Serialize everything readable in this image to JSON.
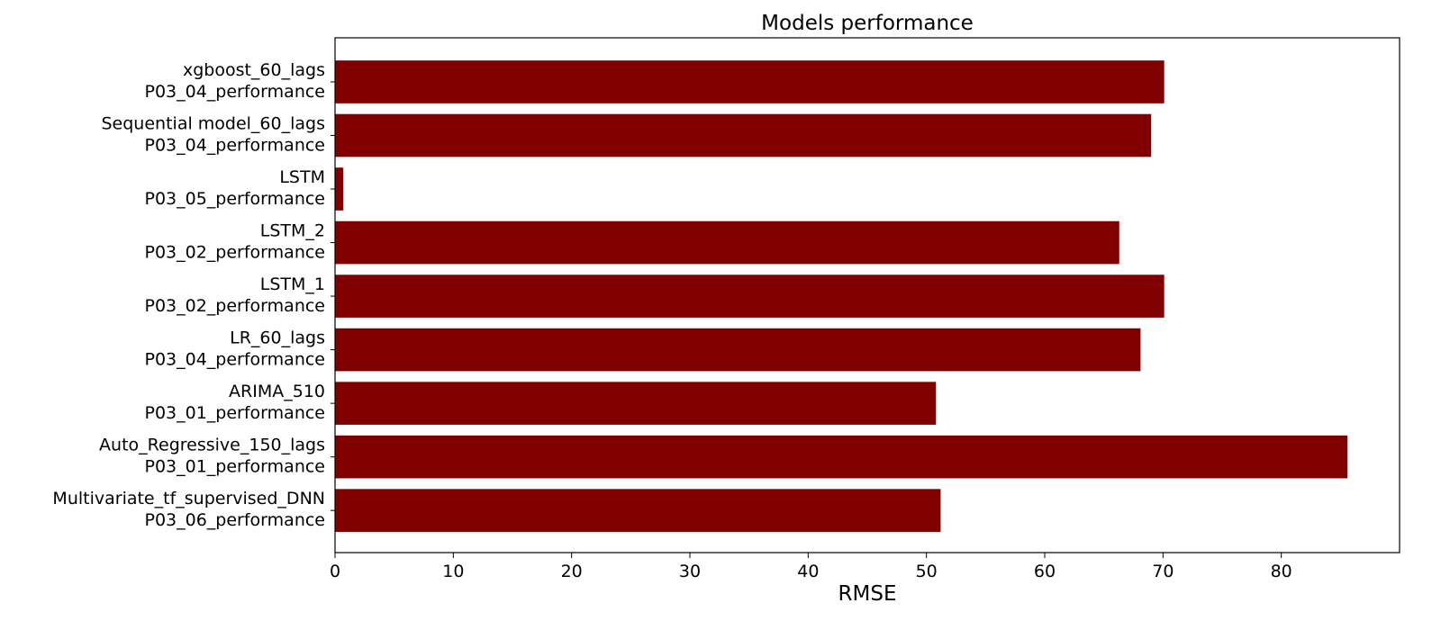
{
  "chart_data": {
    "type": "bar",
    "orientation": "horizontal",
    "title": "Models performance",
    "xlabel": "RMSE",
    "ylabel": "",
    "xlim": [
      0,
      90
    ],
    "xticks": [
      0,
      10,
      20,
      30,
      40,
      50,
      60,
      70,
      80
    ],
    "grid": false,
    "bar_color": "#800000",
    "categories": [
      [
        "xgboost_60_lags",
        "P03_04_performance"
      ],
      [
        "Sequential model_60_lags",
        "P03_04_performance"
      ],
      [
        "LSTM",
        "P03_05_performance"
      ],
      [
        "LSTM_2",
        "P03_02_performance"
      ],
      [
        "LSTM_1",
        "P03_02_performance"
      ],
      [
        "LR_60_lags",
        "P03_04_performance"
      ],
      [
        "ARIMA_510",
        "P03_01_performance"
      ],
      [
        "Auto_Regressive_150_lags",
        "P03_01_performance"
      ],
      [
        "Multivariate_tf_supervised_DNN",
        "P03_06_performance"
      ]
    ],
    "values": [
      70.1,
      69.0,
      0.7,
      66.3,
      70.1,
      68.1,
      50.8,
      85.6,
      51.2
    ]
  }
}
